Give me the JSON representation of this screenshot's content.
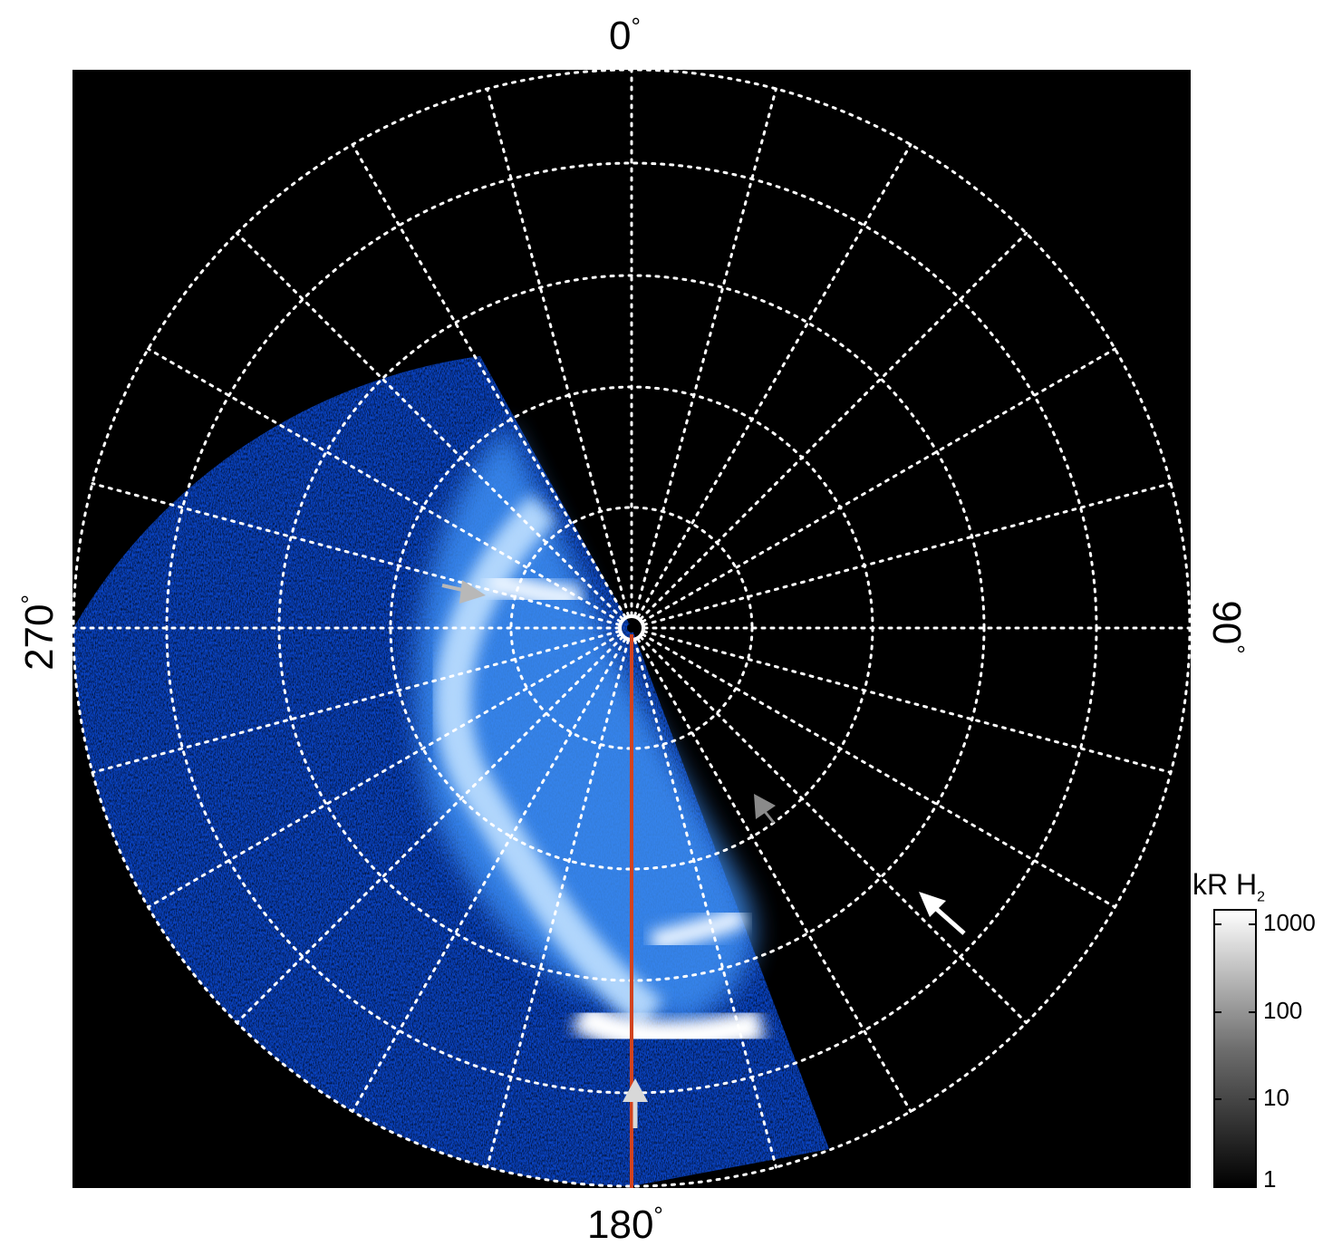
{
  "figure": {
    "labels": {
      "top": "0",
      "bottom": "180",
      "left": "270",
      "right": "90",
      "degree_symbol": "°"
    },
    "colorbar": {
      "unit": "kR H",
      "unit_subscript": "2",
      "ticks": [
        "1000",
        "100",
        "10",
        "1"
      ],
      "scale": "log",
      "range": [
        1,
        1000
      ]
    },
    "colors": {
      "background": "#000000",
      "grid": "#ffffff",
      "aurora_dim": "#0b4fd8",
      "aurora_mid": "#3a8cf0",
      "aurora_bright": "#ffffff",
      "meridian_line": "#d2431f",
      "arrow_gray": "#b8b8b8",
      "arrow_white": "#ffffff"
    },
    "icons": [
      "arrow-icon",
      "arrow-icon",
      "arrow-icon",
      "arrow-icon",
      "arrow-icon"
    ]
  }
}
